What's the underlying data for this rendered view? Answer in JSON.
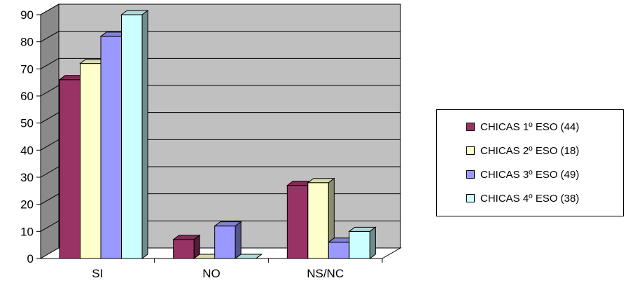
{
  "chart_data": {
    "type": "bar",
    "categories": [
      "SI",
      "NO",
      "NS/NC"
    ],
    "series": [
      {
        "name": "CHICAS 1º ESO (44)",
        "values": [
          66,
          7,
          27
        ],
        "color": "#993366"
      },
      {
        "name": "CHICAS 2º ESO (18)",
        "values": [
          72,
          0,
          28
        ],
        "color": "#FFFFCC"
      },
      {
        "name": "CHICAS 3º ESO (49)",
        "values": [
          82,
          12,
          6
        ],
        "color": "#9999FF"
      },
      {
        "name": "CHICAS 4º ESO (38)",
        "values": [
          90,
          0,
          10
        ],
        "color": "#CCFFFF"
      }
    ],
    "y_ticks": [
      "0",
      "10",
      "20",
      "30",
      "40",
      "50",
      "60",
      "70",
      "80",
      "90"
    ],
    "ylim": [
      0,
      90
    ],
    "title": "",
    "xlabel": "",
    "ylabel": "",
    "grid": true,
    "legend_position": "right",
    "style": "3d-clustered-column",
    "wall_color": "#C0C0C0"
  }
}
